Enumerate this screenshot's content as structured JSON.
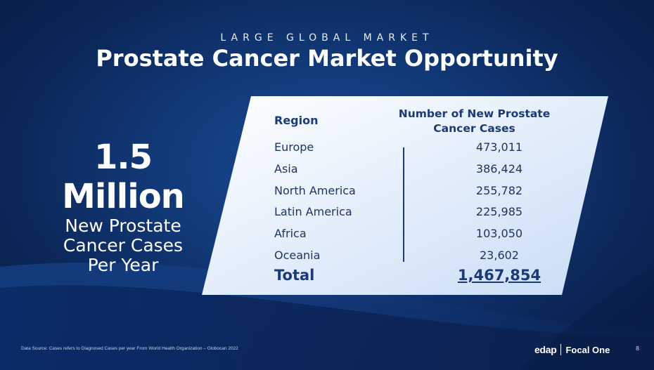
{
  "header": {
    "eyebrow": "LARGE GLOBAL MARKET",
    "title": "Prostate Cancer Market Opportunity"
  },
  "highlight": {
    "big_number": "1.5 Million",
    "line1": "New Prostate",
    "line2": "Cancer Cases",
    "line3": "Per Year"
  },
  "table": {
    "col_region": "Region",
    "col_cases_line1": "Number of New Prostate",
    "col_cases_line2": "Cancer Cases",
    "rows": [
      {
        "region": "Europe",
        "value": "473,011"
      },
      {
        "region": "Asia",
        "value": "386,424"
      },
      {
        "region": "North America",
        "value": "255,782"
      },
      {
        "region": "Latin America",
        "value": "225,985"
      },
      {
        "region": "Africa",
        "value": "103,050"
      },
      {
        "region": "Oceania",
        "value": "23,602"
      }
    ],
    "total_label": "Total",
    "total_value": "1,467,854"
  },
  "footer": {
    "source": "Data Source: Cases refers to Diagnosed Cases per year From World Health Organization – Globocan 2022",
    "logo_left": "edap",
    "logo_right": "Focal One",
    "page_number": "8"
  },
  "colors": {
    "background": "#123a7a",
    "panel": "#eaf2fc",
    "table_text": "#1c3a78"
  }
}
